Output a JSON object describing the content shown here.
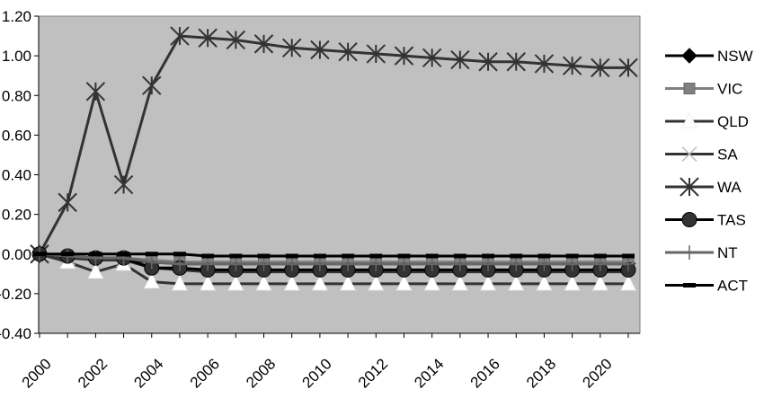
{
  "chart_data": {
    "type": "line",
    "title": "",
    "xlabel": "",
    "ylabel": "",
    "x": [
      2000,
      2001,
      2002,
      2003,
      2004,
      2005,
      2006,
      2007,
      2008,
      2009,
      2010,
      2011,
      2012,
      2013,
      2014,
      2015,
      2016,
      2017,
      2018,
      2019,
      2020,
      2021
    ],
    "x_tick_labels": [
      "2000",
      "2002",
      "2004",
      "2006",
      "2008",
      "2010",
      "2012",
      "2014",
      "2016",
      "2018",
      "2020"
    ],
    "y_tick_labels": [
      "1.20",
      "1.00",
      "0.80",
      "0.60",
      "0.40",
      "0.20",
      "0.00",
      "-0.20",
      "-0.40"
    ],
    "ylim": [
      -0.4,
      1.2
    ],
    "grid": "none",
    "plot_background": "#c0c0c0",
    "legend_position": "right",
    "series": [
      {
        "name": "NSW",
        "marker": "diamond",
        "color": "#000000",
        "values": [
          0,
          -0.01,
          -0.03,
          -0.03,
          -0.04,
          -0.05,
          -0.05,
          -0.05,
          -0.05,
          -0.05,
          -0.05,
          -0.05,
          -0.05,
          -0.05,
          -0.05,
          -0.05,
          -0.05,
          -0.05,
          -0.05,
          -0.05,
          -0.05,
          -0.05
        ]
      },
      {
        "name": "VIC",
        "marker": "square",
        "color": "#808080",
        "values": [
          0,
          -0.01,
          -0.02,
          -0.02,
          -0.03,
          -0.04,
          -0.04,
          -0.04,
          -0.04,
          -0.04,
          -0.04,
          -0.04,
          -0.04,
          -0.04,
          -0.04,
          -0.04,
          -0.04,
          -0.04,
          -0.04,
          -0.04,
          -0.04,
          -0.04
        ]
      },
      {
        "name": "QLD",
        "marker": "triangle",
        "color": "#333333",
        "marker_color": "#ffffff",
        "values": [
          0,
          -0.04,
          -0.09,
          -0.05,
          -0.14,
          -0.15,
          -0.15,
          -0.15,
          -0.15,
          -0.15,
          -0.15,
          -0.15,
          -0.15,
          -0.15,
          -0.15,
          -0.15,
          -0.15,
          -0.15,
          -0.15,
          -0.15,
          -0.15,
          -0.15
        ]
      },
      {
        "name": "SA",
        "marker": "x",
        "color": "#333333",
        "marker_color": "#bbbbbb",
        "values": [
          0,
          -0.02,
          -0.03,
          -0.03,
          -0.07,
          -0.08,
          -0.09,
          -0.09,
          -0.09,
          -0.09,
          -0.09,
          -0.09,
          -0.09,
          -0.09,
          -0.09,
          -0.09,
          -0.09,
          -0.09,
          -0.09,
          -0.09,
          -0.09,
          -0.09
        ]
      },
      {
        "name": "WA",
        "marker": "asterisk",
        "color": "#333333",
        "values": [
          0,
          0.26,
          0.82,
          0.35,
          0.85,
          1.1,
          1.09,
          1.08,
          1.06,
          1.04,
          1.03,
          1.02,
          1.01,
          1.0,
          0.99,
          0.98,
          0.97,
          0.97,
          0.96,
          0.95,
          0.94,
          0.94
        ]
      },
      {
        "name": "TAS",
        "marker": "circle",
        "color": "#000000",
        "marker_color": "#333333",
        "values": [
          0,
          -0.01,
          -0.02,
          -0.02,
          -0.07,
          -0.07,
          -0.08,
          -0.08,
          -0.08,
          -0.08,
          -0.08,
          -0.08,
          -0.08,
          -0.08,
          -0.08,
          -0.08,
          -0.08,
          -0.08,
          -0.08,
          -0.08,
          -0.08,
          -0.08
        ]
      },
      {
        "name": "NT",
        "marker": "plus",
        "color": "#666666",
        "values": [
          0,
          -0.01,
          -0.02,
          -0.02,
          -0.04,
          -0.05,
          -0.05,
          -0.05,
          -0.05,
          -0.05,
          -0.05,
          -0.05,
          -0.05,
          -0.05,
          -0.05,
          -0.05,
          -0.05,
          -0.05,
          -0.05,
          -0.05,
          -0.05,
          -0.05
        ]
      },
      {
        "name": "ACT",
        "marker": "dash",
        "color": "#000000",
        "values": [
          0,
          0.0,
          0.0,
          0.0,
          0.0,
          0.0,
          -0.01,
          -0.01,
          -0.01,
          -0.01,
          -0.01,
          -0.01,
          -0.01,
          -0.01,
          -0.01,
          -0.01,
          -0.01,
          -0.01,
          -0.01,
          -0.01,
          -0.01,
          -0.01
        ]
      }
    ]
  }
}
